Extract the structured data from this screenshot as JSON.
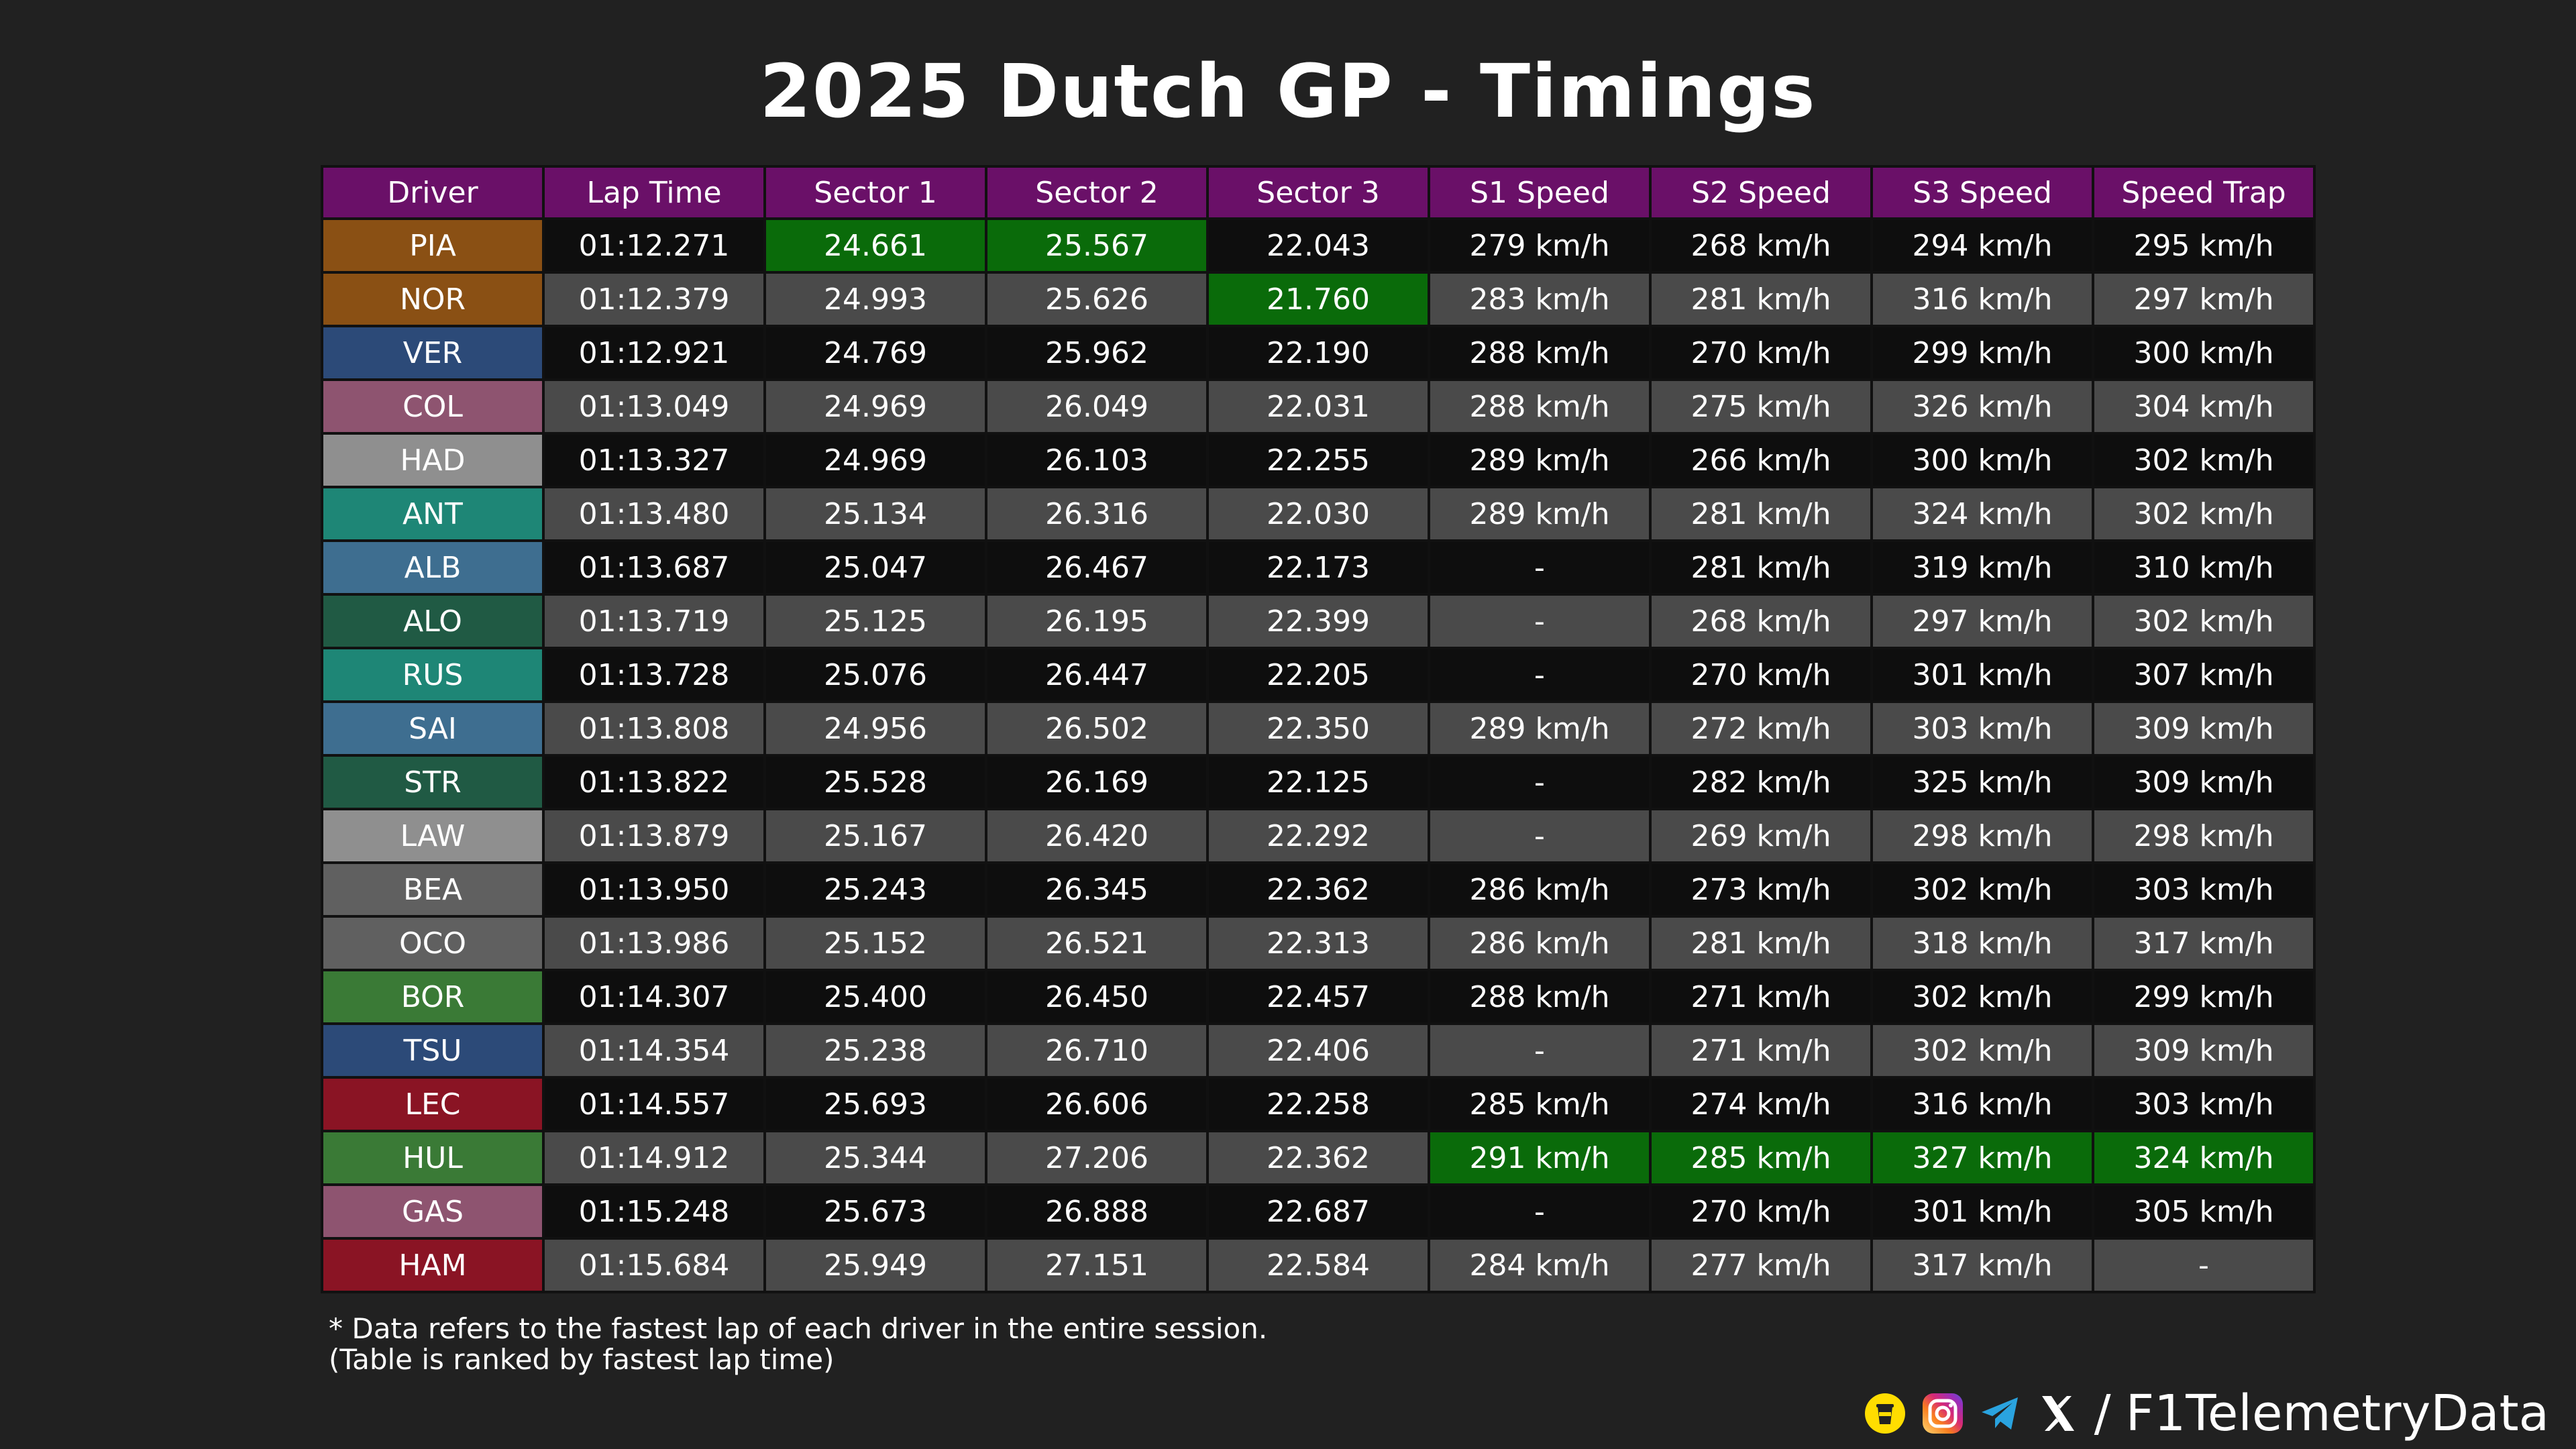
{
  "title": "2025 Dutch GP - Timings",
  "watermark": "@F1TelemetryData",
  "colors": {
    "header_bg": "#6a1068",
    "best_green": "#0a6b0a",
    "row_dark": "#0e0e0e",
    "row_light": "#4a4a4a",
    "background": "#212121"
  },
  "columns": [
    "Driver",
    "Lap Time",
    "Sector 1",
    "Sector 2",
    "Sector 3",
    "S1 Speed",
    "S2 Speed",
    "S3 Speed",
    "Speed Trap"
  ],
  "rows": [
    {
      "driver": "PIA",
      "color": "#8a5014",
      "cells": [
        "01:12.271",
        "24.661",
        "25.567",
        "22.043",
        "279 km/h",
        "268 km/h",
        "294 km/h",
        "295 km/h"
      ],
      "best": [
        1,
        2
      ]
    },
    {
      "driver": "NOR",
      "color": "#8a5014",
      "cells": [
        "01:12.379",
        "24.993",
        "25.626",
        "21.760",
        "283 km/h",
        "281 km/h",
        "316 km/h",
        "297 km/h"
      ],
      "best": [
        3
      ]
    },
    {
      "driver": "VER",
      "color": "#2c4a78",
      "cells": [
        "01:12.921",
        "24.769",
        "25.962",
        "22.190",
        "288 km/h",
        "270 km/h",
        "299 km/h",
        "300 km/h"
      ],
      "best": []
    },
    {
      "driver": "COL",
      "color": "#8e5470",
      "cells": [
        "01:13.049",
        "24.969",
        "26.049",
        "22.031",
        "288 km/h",
        "275 km/h",
        "326 km/h",
        "304 km/h"
      ],
      "best": []
    },
    {
      "driver": "HAD",
      "color": "#8f8f8f",
      "cells": [
        "01:13.327",
        "24.969",
        "26.103",
        "22.255",
        "289 km/h",
        "266 km/h",
        "300 km/h",
        "302 km/h"
      ],
      "best": []
    },
    {
      "driver": "ANT",
      "color": "#1e8676",
      "cells": [
        "01:13.480",
        "25.134",
        "26.316",
        "22.030",
        "289 km/h",
        "281 km/h",
        "324 km/h",
        "302 km/h"
      ],
      "best": []
    },
    {
      "driver": "ALB",
      "color": "#3e6e90",
      "cells": [
        "01:13.687",
        "25.047",
        "26.467",
        "22.173",
        "-",
        "281 km/h",
        "319 km/h",
        "310 km/h"
      ],
      "best": []
    },
    {
      "driver": "ALO",
      "color": "#205a44",
      "cells": [
        "01:13.719",
        "25.125",
        "26.195",
        "22.399",
        "-",
        "268 km/h",
        "297 km/h",
        "302 km/h"
      ],
      "best": []
    },
    {
      "driver": "RUS",
      "color": "#1e8676",
      "cells": [
        "01:13.728",
        "25.076",
        "26.447",
        "22.205",
        "-",
        "270 km/h",
        "301 km/h",
        "307 km/h"
      ],
      "best": []
    },
    {
      "driver": "SAI",
      "color": "#3e6e90",
      "cells": [
        "01:13.808",
        "24.956",
        "26.502",
        "22.350",
        "289 km/h",
        "272 km/h",
        "303 km/h",
        "309 km/h"
      ],
      "best": []
    },
    {
      "driver": "STR",
      "color": "#205a44",
      "cells": [
        "01:13.822",
        "25.528",
        "26.169",
        "22.125",
        "-",
        "282 km/h",
        "325 km/h",
        "309 km/h"
      ],
      "best": []
    },
    {
      "driver": "LAW",
      "color": "#8f8f8f",
      "cells": [
        "01:13.879",
        "25.167",
        "26.420",
        "22.292",
        "-",
        "269 km/h",
        "298 km/h",
        "298 km/h"
      ],
      "best": []
    },
    {
      "driver": "BEA",
      "color": "#606060",
      "cells": [
        "01:13.950",
        "25.243",
        "26.345",
        "22.362",
        "286 km/h",
        "273 km/h",
        "302 km/h",
        "303 km/h"
      ],
      "best": []
    },
    {
      "driver": "OCO",
      "color": "#606060",
      "cells": [
        "01:13.986",
        "25.152",
        "26.521",
        "22.313",
        "286 km/h",
        "281 km/h",
        "318 km/h",
        "317 km/h"
      ],
      "best": []
    },
    {
      "driver": "BOR",
      "color": "#3a7a36",
      "cells": [
        "01:14.307",
        "25.400",
        "26.450",
        "22.457",
        "288 km/h",
        "271 km/h",
        "302 km/h",
        "299 km/h"
      ],
      "best": []
    },
    {
      "driver": "TSU",
      "color": "#2c4a78",
      "cells": [
        "01:14.354",
        "25.238",
        "26.710",
        "22.406",
        "-",
        "271 km/h",
        "302 km/h",
        "309 km/h"
      ],
      "best": []
    },
    {
      "driver": "LEC",
      "color": "#8a1424",
      "cells": [
        "01:14.557",
        "25.693",
        "26.606",
        "22.258",
        "285 km/h",
        "274 km/h",
        "316 km/h",
        "303 km/h"
      ],
      "best": []
    },
    {
      "driver": "HUL",
      "color": "#3a7a36",
      "cells": [
        "01:14.912",
        "25.344",
        "27.206",
        "22.362",
        "291 km/h",
        "285 km/h",
        "327 km/h",
        "324 km/h"
      ],
      "best": [
        4,
        5,
        6,
        7
      ]
    },
    {
      "driver": "GAS",
      "color": "#8e5470",
      "cells": [
        "01:15.248",
        "25.673",
        "26.888",
        "22.687",
        "-",
        "270 km/h",
        "301 km/h",
        "305 km/h"
      ],
      "best": []
    },
    {
      "driver": "HAM",
      "color": "#8a1424",
      "cells": [
        "01:15.684",
        "25.949",
        "27.151",
        "22.584",
        "284 km/h",
        "277 km/h",
        "317 km/h",
        "-"
      ],
      "best": []
    }
  ],
  "footnote": {
    "line1": "* Data refers to the fastest lap of each driver in the entire session.",
    "line2": "(Table is ranked by fastest lap time)"
  },
  "brand": {
    "icons": [
      "buymeacoffee-icon",
      "instagram-icon",
      "telegram-icon",
      "x-icon"
    ],
    "separator": "/",
    "handle": "F1TelemetryData"
  }
}
